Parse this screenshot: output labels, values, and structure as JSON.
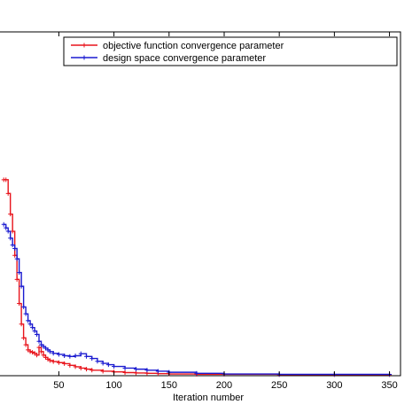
{
  "chart_data": {
    "type": "line",
    "xlabel": "Iteration number",
    "ylabel": "",
    "title": "",
    "xlim": [
      -5,
      360
    ],
    "ylim": [
      0,
      1
    ],
    "xticks": [
      50,
      100,
      150,
      200,
      250,
      300,
      350
    ],
    "xtick_labels": [
      "50",
      "100",
      "150",
      "200",
      "250",
      "300",
      "350"
    ],
    "grid": false,
    "legend_position": "top-right",
    "series": [
      {
        "name": "objective function convergence parameter",
        "color": "#e8141c",
        "marker": "plus",
        "x": [
          0,
          2,
          4,
          6,
          8,
          10,
          12,
          14,
          16,
          18,
          20,
          22,
          24,
          26,
          28,
          30,
          32,
          34,
          36,
          38,
          40,
          42,
          45,
          50,
          55,
          60,
          65,
          70,
          75,
          80,
          90,
          100,
          110,
          120,
          130,
          140,
          150,
          175,
          200,
          250,
          300,
          350
        ],
        "y": [
          0.57,
          0.57,
          0.53,
          0.47,
          0.42,
          0.35,
          0.28,
          0.21,
          0.15,
          0.11,
          0.09,
          0.075,
          0.07,
          0.068,
          0.065,
          0.06,
          0.082,
          0.07,
          0.06,
          0.053,
          0.048,
          0.044,
          0.041,
          0.038,
          0.035,
          0.03,
          0.026,
          0.022,
          0.019,
          0.016,
          0.013,
          0.011,
          0.009,
          0.008,
          0.007,
          0.006,
          0.005,
          0.004,
          0.004,
          0.003,
          0.003,
          0.003
        ]
      },
      {
        "name": "design space convergence parameter",
        "color": "#1a1ad0",
        "marker": "plus",
        "x": [
          0,
          2,
          4,
          6,
          8,
          10,
          12,
          14,
          16,
          18,
          20,
          22,
          24,
          26,
          28,
          30,
          32,
          34,
          36,
          38,
          40,
          42,
          45,
          50,
          55,
          60,
          65,
          70,
          75,
          80,
          85,
          90,
          95,
          100,
          110,
          120,
          130,
          140,
          150,
          175,
          200,
          250,
          300,
          350
        ],
        "y": [
          0.44,
          0.43,
          0.42,
          0.4,
          0.38,
          0.37,
          0.34,
          0.3,
          0.26,
          0.2,
          0.18,
          0.16,
          0.15,
          0.14,
          0.13,
          0.12,
          0.1,
          0.09,
          0.085,
          0.08,
          0.075,
          0.07,
          0.065,
          0.062,
          0.058,
          0.056,
          0.058,
          0.064,
          0.056,
          0.05,
          0.042,
          0.036,
          0.032,
          0.027,
          0.022,
          0.019,
          0.016,
          0.013,
          0.01,
          0.007,
          0.005,
          0.004,
          0.004,
          0.004
        ]
      }
    ]
  }
}
